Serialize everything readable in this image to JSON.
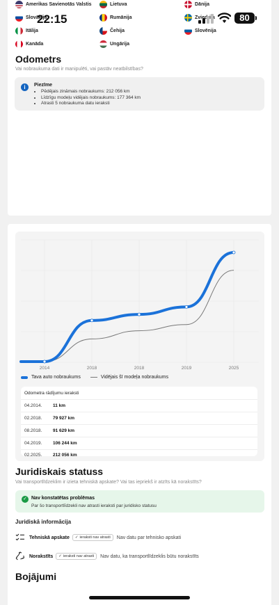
{
  "status_bar": {
    "time": "22:15",
    "battery": "80"
  },
  "countries": [
    {
      "name": "Amerikas Savienotās Valstis",
      "colors": [
        "#b22234",
        "#ffffff",
        "#3c3b6e"
      ]
    },
    {
      "name": "Lietuva",
      "colors": [
        "#fdb913",
        "#006a44",
        "#c1272d"
      ]
    },
    {
      "name": "Dānija",
      "colors": [
        "#c8102e",
        "#ffffff",
        "#c8102e"
      ]
    },
    {
      "name": "Slovākija",
      "colors": [
        "#ffffff",
        "#0b4ea2",
        "#ee1c25"
      ]
    },
    {
      "name": "Rumānija",
      "colors": [
        "#002b7f",
        "#fcd116",
        "#ce1126"
      ]
    },
    {
      "name": "Zviedrija",
      "colors": [
        "#006aa7",
        "#fecc00",
        "#006aa7"
      ]
    },
    {
      "name": "Itālija",
      "colors": [
        "#009246",
        "#ffffff",
        "#ce2b37"
      ]
    },
    {
      "name": "Čehija",
      "colors": [
        "#ffffff",
        "#d7141a",
        "#11457e"
      ]
    },
    {
      "name": "Slovēnija",
      "colors": [
        "#ffffff",
        "#005da4",
        "#ed1c24"
      ]
    },
    {
      "name": "Kanāda",
      "colors": [
        "#d80621",
        "#ffffff",
        "#d80621"
      ]
    },
    {
      "name": "Ungārija",
      "colors": [
        "#ce2939",
        "#ffffff",
        "#477050"
      ]
    }
  ],
  "odometer": {
    "title": "Odometrs",
    "subtitle": "Vai nobraukuma dati ir manipulēti, vai pastāv neatbilstības?",
    "note_title": "Piezīme",
    "note_items": [
      "Pēdējais zināmais nobraukums: 212 056 km",
      "Līdzīgu modeļu vidējais nobraukums: 177 364 km",
      "Atrasti 5 nobraukuma datu ieraksti"
    ]
  },
  "chart_data": {
    "type": "line",
    "x_tick_labels": [
      "2014",
      "2018",
      "2018",
      "2019",
      "2025"
    ],
    "series": [
      {
        "name": "Tava auto nobraukums",
        "x": [
          "04.2014",
          "02.2018",
          "08.2018",
          "04.2019",
          "02.2025"
        ],
        "values": [
          11,
          79927,
          91629,
          106244,
          212056
        ]
      },
      {
        "name": "Vidējais šī modeļa nobraukums",
        "x": [
          "04.2014",
          "02.2018",
          "08.2018",
          "04.2019",
          "02.2025"
        ],
        "values": [
          11,
          44000,
          60000,
          72000,
          177364
        ]
      }
    ],
    "grid": true,
    "legend": "bottom-left",
    "colors": {
      "car": "#1b72d9",
      "average": "#777777"
    }
  },
  "records": {
    "title": "Odometra rādījumu ieraksti",
    "rows": [
      {
        "date": "04.2014.",
        "value": "11 km"
      },
      {
        "date": "02.2018.",
        "value": "79 927 km"
      },
      {
        "date": "08.2018.",
        "value": "91 629 km"
      },
      {
        "date": "04.2019.",
        "value": "106 244 km"
      },
      {
        "date": "02.2025.",
        "value": "212 056 km"
      }
    ]
  },
  "legal": {
    "title": "Juridiskais statuss",
    "subtitle": "Vai transportlīdzeklim ir izieta tehniskā apskate? Vai tas iepriekš ir atzīts kā norakstīts?",
    "ok_title": "Nav konstatētas problēmas",
    "ok_text": "Par šo transportlīdzekli nav atrasti ieraksti par juridisko statusu",
    "info_title": "Juridiskā informācija",
    "rows": [
      {
        "label": "Tehniskā apskate",
        "pill": "ieraksti nav atrasti",
        "desc": "Nav datu par tehnisko apskati",
        "icon": "checklist-icon"
      },
      {
        "label": "Norakstīts",
        "pill": "ieraksti nav atrasti",
        "desc": "Nav datu, ka transportlīdzeklis būtu norakstīts",
        "icon": "recycle-icon"
      }
    ]
  },
  "damages": {
    "title": "Bojājumi"
  }
}
